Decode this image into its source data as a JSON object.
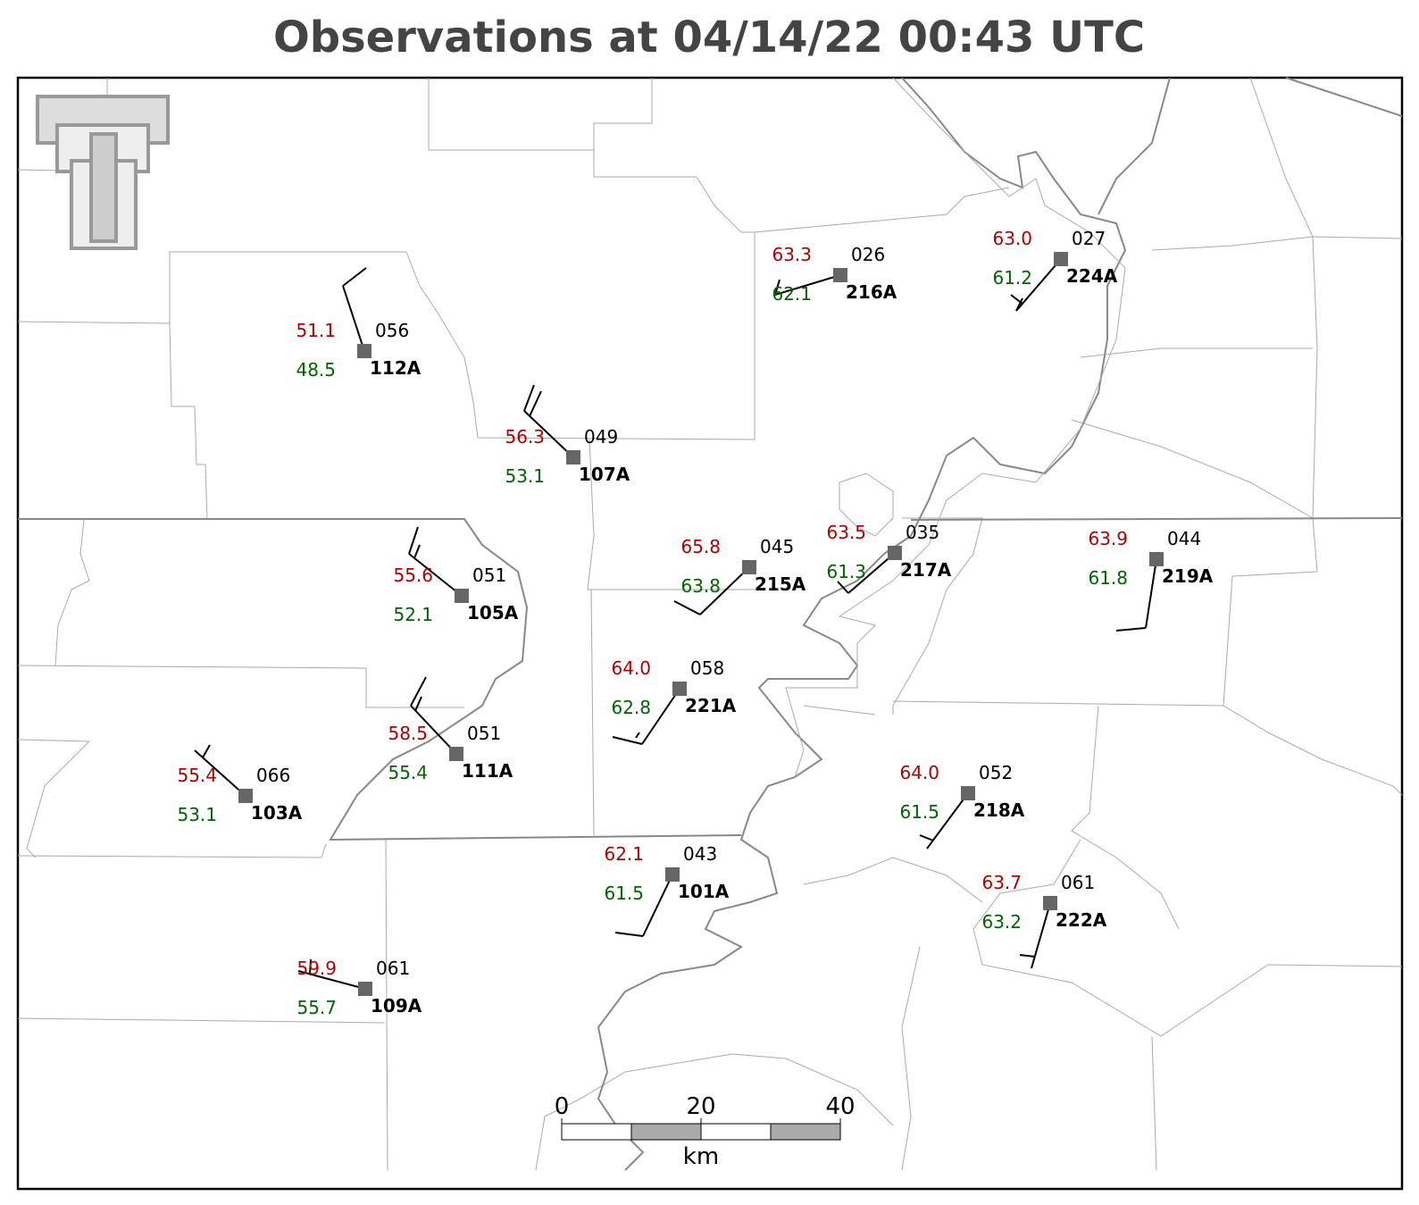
{
  "title": "Observations at 04/14/22 00:43 UTC",
  "stations": [
    {
      "id": "112A",
      "temperature": "51.1",
      "dewpoint": "48.5",
      "pressure": "056"
    },
    {
      "id": "107A",
      "temperature": "56.3",
      "dewpoint": "53.1",
      "pressure": "049"
    },
    {
      "id": "216A",
      "temperature": "63.3",
      "dewpoint": "62.1",
      "pressure": "026"
    },
    {
      "id": "224A",
      "temperature": "63.0",
      "dewpoint": "61.2",
      "pressure": "027"
    },
    {
      "id": "105A",
      "temperature": "55.6",
      "dewpoint": "52.1",
      "pressure": "051"
    },
    {
      "id": "215A",
      "temperature": "65.8",
      "dewpoint": "63.8",
      "pressure": "045"
    },
    {
      "id": "217A",
      "temperature": "63.5",
      "dewpoint": "61.3",
      "pressure": "035"
    },
    {
      "id": "219A",
      "temperature": "63.9",
      "dewpoint": "61.8",
      "pressure": "044"
    },
    {
      "id": "221A",
      "temperature": "64.0",
      "dewpoint": "62.8",
      "pressure": "058"
    },
    {
      "id": "111A",
      "temperature": "58.5",
      "dewpoint": "55.4",
      "pressure": "051"
    },
    {
      "id": "103A",
      "temperature": "55.4",
      "dewpoint": "53.1",
      "pressure": "066"
    },
    {
      "id": "218A",
      "temperature": "64.0",
      "dewpoint": "61.5",
      "pressure": "052"
    },
    {
      "id": "101A",
      "temperature": "62.1",
      "dewpoint": "61.5",
      "pressure": "043"
    },
    {
      "id": "222A",
      "temperature": "63.7",
      "dewpoint": "63.2",
      "pressure": "061"
    },
    {
      "id": "109A",
      "temperature": "59.9",
      "dewpoint": "55.7",
      "pressure": "061"
    }
  ],
  "scale_bar": {
    "labels": [
      "0",
      "20",
      "40"
    ],
    "unit": "km"
  }
}
